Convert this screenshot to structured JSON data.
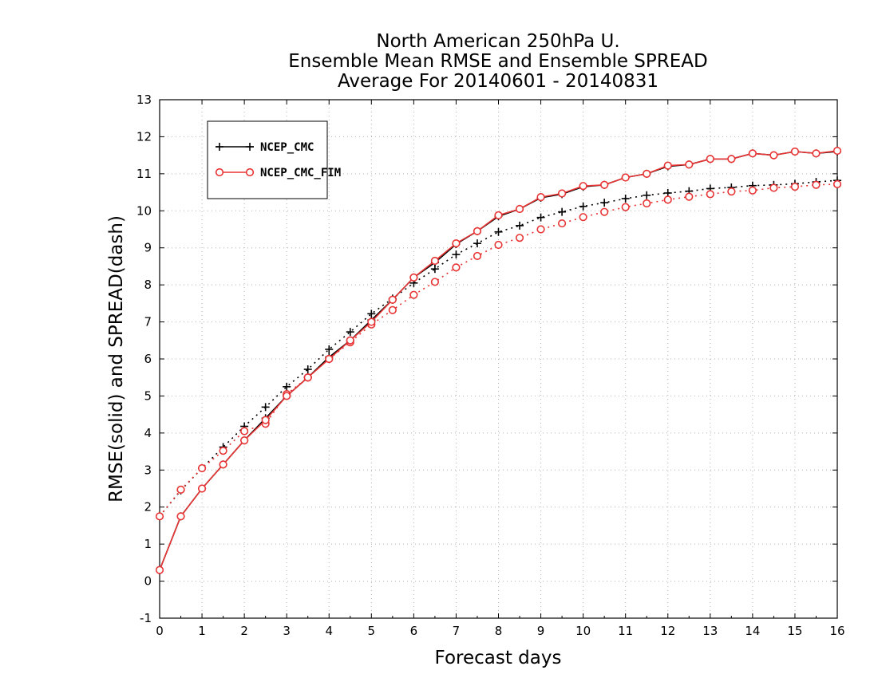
{
  "chart_data": {
    "type": "line",
    "title": [
      "North American 250hPa U.",
      "Ensemble Mean RMSE and Ensemble SPREAD",
      "Average For 20140601 - 20140831"
    ],
    "xlabel": "Forecast days",
    "ylabel": "RMSE(solid) and SPREAD(dash)",
    "xlim": [
      0,
      16
    ],
    "ylim": [
      -1,
      13
    ],
    "x_ticks": [
      "0",
      "1",
      "2",
      "3",
      "4",
      "5",
      "6",
      "7",
      "8",
      "9",
      "10",
      "11",
      "12",
      "13",
      "14",
      "15",
      "16"
    ],
    "y_ticks": [
      "-1",
      "0",
      "1",
      "2",
      "3",
      "4",
      "5",
      "6",
      "7",
      "8",
      "9",
      "10",
      "11",
      "12",
      "13"
    ],
    "grid": true,
    "legend_position": "top-left",
    "x": [
      0,
      0.5,
      1,
      1.5,
      2,
      2.5,
      3,
      3.5,
      4,
      4.5,
      5,
      5.5,
      6,
      6.5,
      7,
      7.5,
      8,
      8.5,
      9,
      9.5,
      10,
      10.5,
      11,
      11.5,
      12,
      12.5,
      13,
      13.5,
      14,
      14.5,
      15,
      15.5,
      16
    ],
    "series": [
      {
        "name": "NCEP_CMC",
        "color": "#000000",
        "marker": "plus",
        "rmse": [
          0.3,
          1.75,
          2.5,
          3.15,
          3.8,
          4.4,
          5.0,
          5.5,
          6.05,
          6.5,
          7.05,
          7.6,
          8.2,
          8.6,
          9.1,
          9.45,
          9.85,
          10.05,
          10.35,
          10.45,
          10.65,
          10.7,
          10.9,
          11.0,
          11.2,
          11.25,
          11.4,
          11.4,
          11.55,
          11.5,
          11.6,
          11.55,
          11.6
        ],
        "spread": [
          1.75,
          2.45,
          3.05,
          3.62,
          4.18,
          4.7,
          5.25,
          5.72,
          6.26,
          6.73,
          7.22,
          7.63,
          8.05,
          8.43,
          8.82,
          9.12,
          9.43,
          9.6,
          9.82,
          9.97,
          10.12,
          10.22,
          10.33,
          10.42,
          10.48,
          10.53,
          10.6,
          10.63,
          10.68,
          10.7,
          10.73,
          10.78,
          10.82
        ]
      },
      {
        "name": "NCEP_CMC_FIM",
        "color": "#e83434",
        "marker": "circle",
        "rmse": [
          0.3,
          1.75,
          2.5,
          3.15,
          3.8,
          4.35,
          5.0,
          5.5,
          6.0,
          6.5,
          7.0,
          7.6,
          8.2,
          8.65,
          9.12,
          9.45,
          9.88,
          10.05,
          10.37,
          10.47,
          10.67,
          10.7,
          10.9,
          11.0,
          11.22,
          11.25,
          11.4,
          11.4,
          11.55,
          11.5,
          11.6,
          11.55,
          11.62
        ],
        "spread": [
          1.75,
          2.47,
          3.05,
          3.52,
          4.05,
          4.25,
          5.05,
          5.5,
          6.0,
          6.45,
          6.93,
          7.32,
          7.73,
          8.08,
          8.47,
          8.78,
          9.08,
          9.27,
          9.5,
          9.66,
          9.83,
          9.97,
          10.1,
          10.2,
          10.3,
          10.38,
          10.45,
          10.52,
          10.55,
          10.62,
          10.65,
          10.7,
          10.72
        ]
      }
    ]
  }
}
